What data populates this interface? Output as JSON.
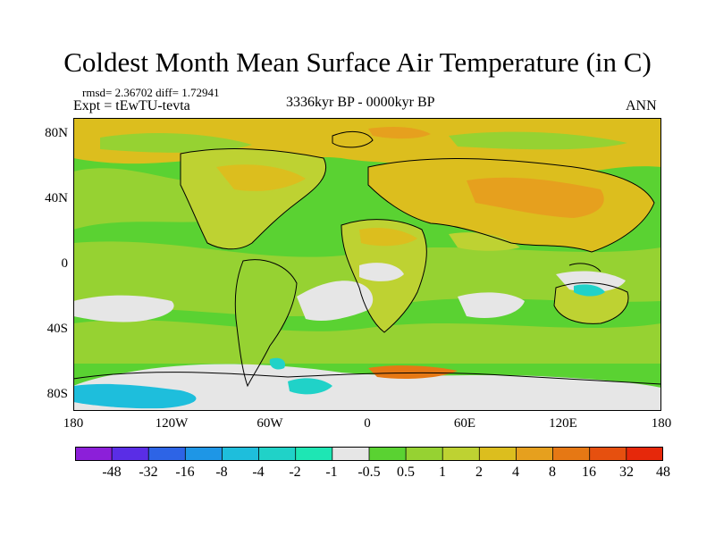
{
  "title": "Coldest Month Mean Surface Air Temperature (in C)",
  "stats_text": "rmsd= 2.36702 diff= 1.72941",
  "experiment": "Expt = tEwTU-tevta",
  "period": "3336kyr BP - 0000kyr BP",
  "season": "ANN",
  "axes": {
    "y_ticks": [
      "80N",
      "40N",
      "0",
      "40S",
      "80S"
    ],
    "x_ticks": [
      "180",
      "120W",
      "60W",
      "0",
      "60E",
      "120E",
      "180"
    ]
  },
  "colorbar": {
    "colors": [
      "#8c1fd9",
      "#5a2de6",
      "#2d64e6",
      "#1e96e6",
      "#1ebedc",
      "#20d2c8",
      "#1ee6b4",
      "#e6e6e6",
      "#5ad232",
      "#96d232",
      "#bed232",
      "#dcbe1e",
      "#e6a01e",
      "#e67814",
      "#e6500f",
      "#e6280a"
    ],
    "labels": [
      "-48",
      "-32",
      "-16",
      "-8",
      "-4",
      "-2",
      "-1",
      "-0.5",
      "0.5",
      "1",
      "2",
      "4",
      "8",
      "16",
      "32",
      "48"
    ]
  },
  "colors": {
    "land_neutral": "#bed232",
    "ocean_mild": "#5ad232",
    "ocean_warm": "#96d232",
    "warm": "#dcbe1e",
    "warmer": "#e6a01e",
    "hot": "#e67814",
    "no_change": "#e6e6e6",
    "cool": "#20d2c8",
    "cooler": "#1ebedc",
    "coast": "#000000"
  }
}
